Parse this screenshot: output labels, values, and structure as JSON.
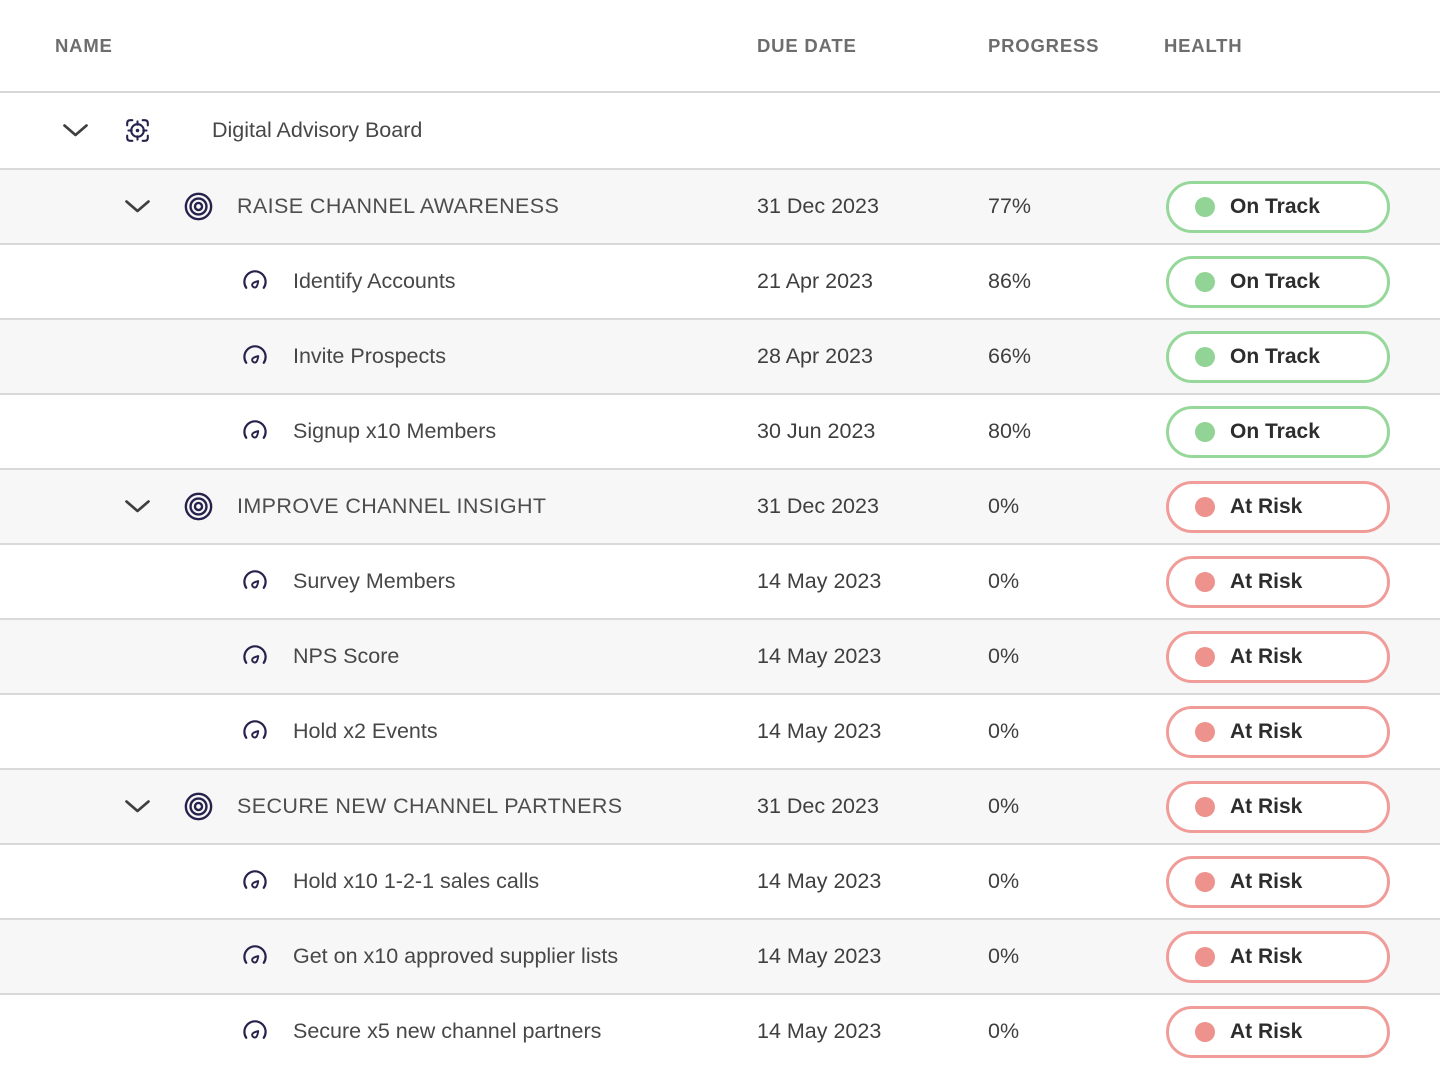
{
  "header": {
    "columns": [
      {
        "key": "name",
        "label": "NAME"
      },
      {
        "key": "due_date",
        "label": "DUE DATE"
      },
      {
        "key": "progress",
        "label": "PROGRESS"
      },
      {
        "key": "health",
        "label": "HEALTH"
      }
    ]
  },
  "table": {
    "rows": [
      {
        "type": "workspace",
        "icon": "focus-target-icon",
        "expandable": true,
        "name": "Digital Advisory Board",
        "due_date": "",
        "progress": "",
        "health": null
      },
      {
        "type": "goal",
        "icon": "bullseye-icon",
        "expandable": true,
        "name": "RAISE CHANNEL AWARENESS",
        "due_date": "31 Dec 2023",
        "progress": "77%",
        "health": {
          "label": "On Track",
          "status": "on-track"
        }
      },
      {
        "type": "task",
        "icon": "gauge-icon",
        "expandable": false,
        "name": "Identify Accounts",
        "due_date": "21 Apr 2023",
        "progress": "86%",
        "health": {
          "label": "On Track",
          "status": "on-track"
        }
      },
      {
        "type": "task",
        "icon": "gauge-icon",
        "expandable": false,
        "name": "Invite Prospects",
        "due_date": "28 Apr 2023",
        "progress": "66%",
        "health": {
          "label": "On Track",
          "status": "on-track"
        }
      },
      {
        "type": "task",
        "icon": "gauge-icon",
        "expandable": false,
        "name": "Signup x10 Members",
        "due_date": "30 Jun 2023",
        "progress": "80%",
        "health": {
          "label": "On Track",
          "status": "on-track"
        }
      },
      {
        "type": "goal",
        "icon": "bullseye-icon",
        "expandable": true,
        "name": "IMPROVE CHANNEL INSIGHT",
        "due_date": "31 Dec 2023",
        "progress": "0%",
        "health": {
          "label": "At Risk",
          "status": "at-risk"
        }
      },
      {
        "type": "task",
        "icon": "gauge-icon",
        "expandable": false,
        "name": "Survey Members",
        "due_date": "14 May 2023",
        "progress": "0%",
        "health": {
          "label": "At Risk",
          "status": "at-risk"
        }
      },
      {
        "type": "task",
        "icon": "gauge-icon",
        "expandable": false,
        "name": "NPS Score",
        "due_date": "14 May 2023",
        "progress": "0%",
        "health": {
          "label": "At Risk",
          "status": "at-risk"
        }
      },
      {
        "type": "task",
        "icon": "gauge-icon",
        "expandable": false,
        "name": "Hold x2 Events",
        "due_date": "14 May 2023",
        "progress": "0%",
        "health": {
          "label": "At Risk",
          "status": "at-risk"
        }
      },
      {
        "type": "goal",
        "icon": "bullseye-icon",
        "expandable": true,
        "name": "SECURE NEW CHANNEL PARTNERS",
        "due_date": "31 Dec 2023",
        "progress": "0%",
        "health": {
          "label": "At Risk",
          "status": "at-risk"
        }
      },
      {
        "type": "task",
        "icon": "gauge-icon",
        "expandable": false,
        "name": "Hold x10 1-2-1 sales calls",
        "due_date": "14 May 2023",
        "progress": "0%",
        "health": {
          "label": "At Risk",
          "status": "at-risk"
        }
      },
      {
        "type": "task",
        "icon": "gauge-icon",
        "expandable": false,
        "name": "Get on x10 approved supplier lists",
        "due_date": "14 May 2023",
        "progress": "0%",
        "health": {
          "label": "At Risk",
          "status": "at-risk"
        }
      },
      {
        "type": "task",
        "icon": "gauge-icon",
        "expandable": false,
        "name": "Secure x5 new channel partners",
        "due_date": "14 May 2023",
        "progress": "0%",
        "health": {
          "label": "At Risk",
          "status": "at-risk"
        }
      }
    ]
  },
  "icons": {
    "workspace": "focus-target-icon",
    "goal": "bullseye-icon",
    "task": "gauge-icon",
    "expand": "chevron-down-icon"
  },
  "colors": {
    "on_track_border": "#96d79a",
    "on_track_dot": "#92d496",
    "at_risk_border": "#f09d99",
    "at_risk_dot": "#ee928e",
    "row_stripe": "#f7f7f7",
    "row_border": "#d9d9d9",
    "icon_navy": "#26224c",
    "header_text": "#6d6d6d",
    "body_text": "#3f3f3f"
  }
}
